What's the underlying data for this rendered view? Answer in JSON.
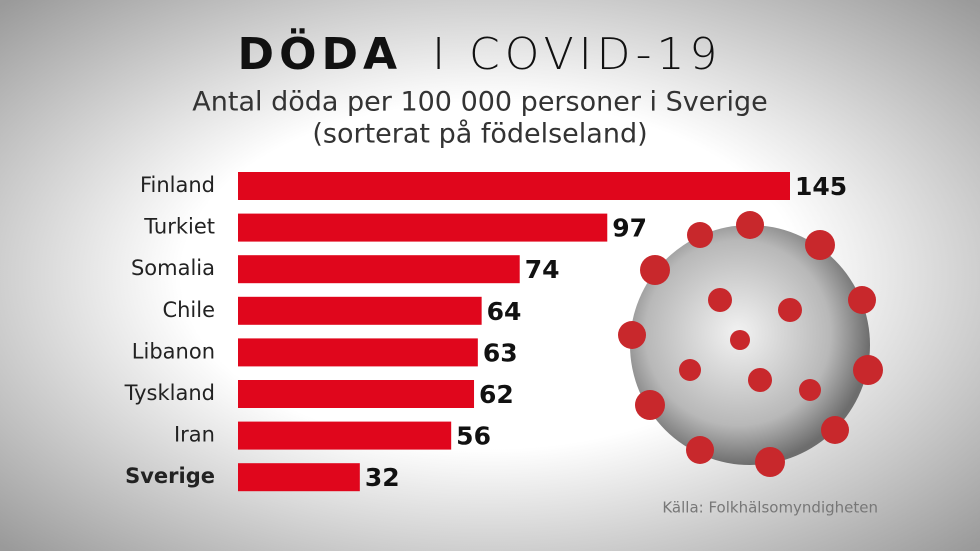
{
  "chart_data": {
    "type": "bar",
    "orientation": "horizontal",
    "title": [
      "DÖDA",
      "I COVID-19"
    ],
    "subtitle": [
      "Antal döda per 100 000 personer i Sverige",
      "(sorterat på födelseland)"
    ],
    "categories": [
      "Finland",
      "Turkiet",
      "Somalia",
      "Chile",
      "Libanon",
      "Tyskland",
      "Iran",
      "Sverige"
    ],
    "values": [
      145,
      97,
      74,
      64,
      63,
      62,
      56,
      32
    ],
    "color": "#e0061c",
    "bold_category": 7,
    "source": "Källa: Folkhälsomyndigheten"
  }
}
